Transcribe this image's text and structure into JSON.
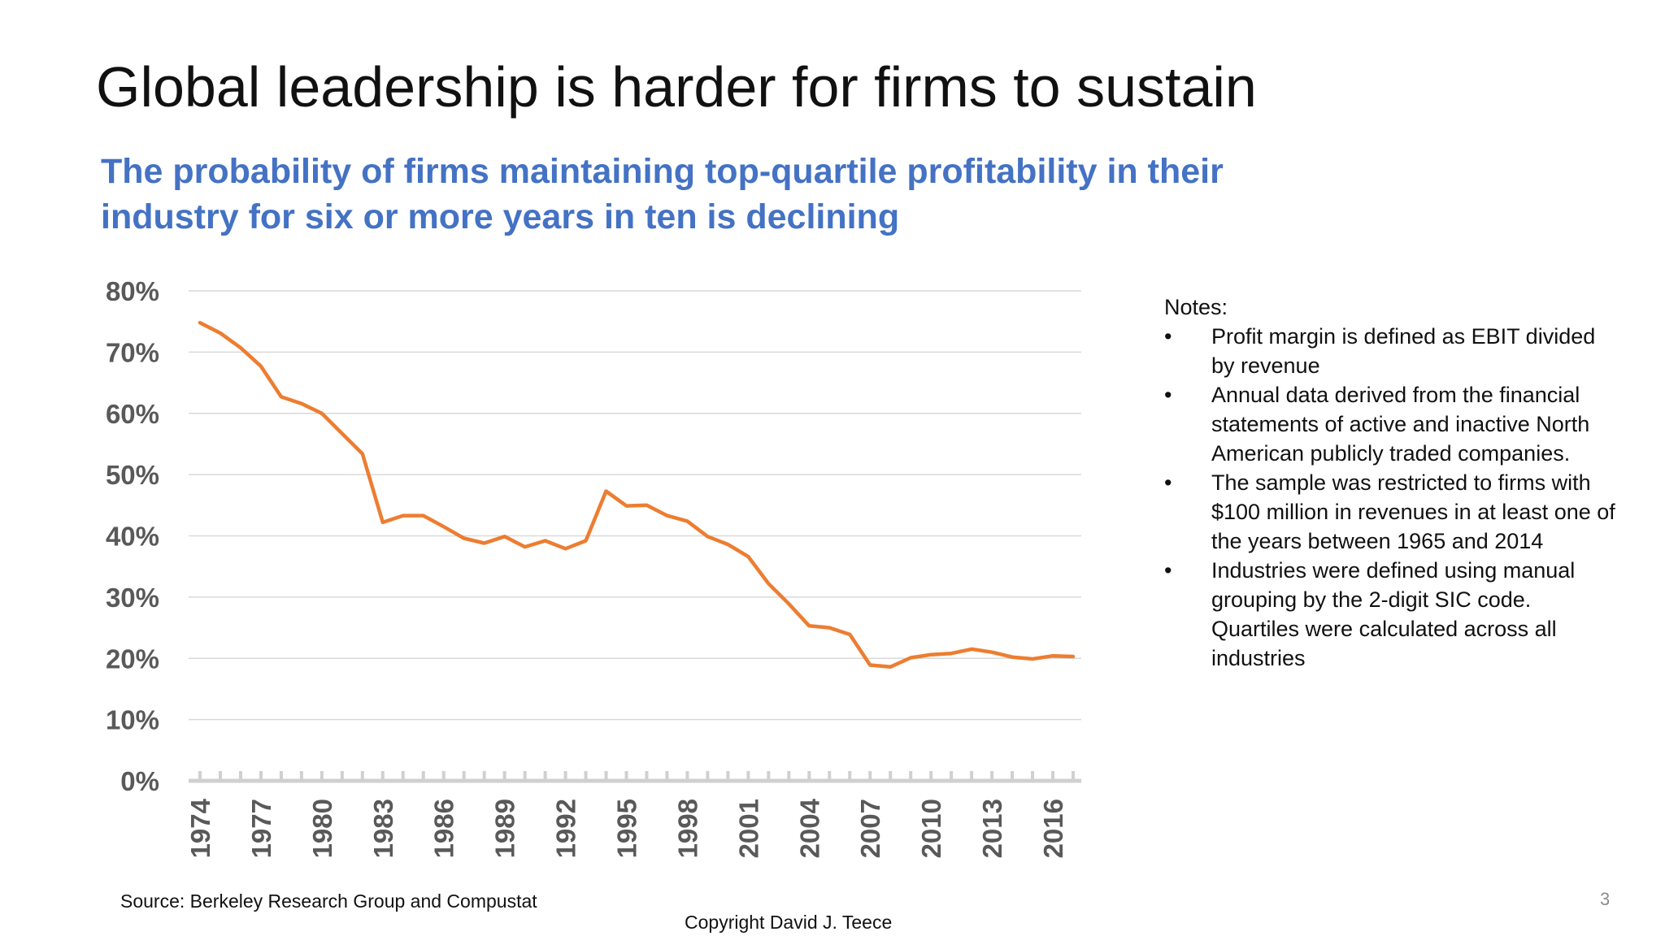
{
  "slide": {
    "title": "Global leadership is harder for firms to sustain",
    "subtitle_lines": [
      "The probability of firms maintaining top-quartile profitability in their",
      "industry for six or more years in ten is declining"
    ],
    "source": "Source: Berkeley Research Group and Compustat",
    "copyright": "Copyright David J. Teece",
    "page_number": "3"
  },
  "notes": {
    "heading": "Notes:",
    "items": [
      "Profit margin is defined as EBIT divided by revenue",
      "Annual data derived from the financial statements of active and inactive North American publicly traded companies.",
      "The sample was restricted to firms with $100 million in revenues in at least one of the years between 1965 and 2014",
      "Industries were defined using manual grouping by the 2-digit SIC code. Quartiles were calculated across all industries"
    ]
  },
  "chart_data": {
    "type": "line",
    "x": [
      1974,
      1975,
      1976,
      1977,
      1978,
      1979,
      1980,
      1981,
      1982,
      1983,
      1984,
      1985,
      1986,
      1987,
      1988,
      1989,
      1990,
      1991,
      1992,
      1993,
      1994,
      1995,
      1996,
      1997,
      1998,
      1999,
      2000,
      2001,
      2002,
      2003,
      2004,
      2005,
      2006,
      2007,
      2008,
      2009,
      2010,
      2011,
      2012,
      2013,
      2014,
      2015,
      2016,
      2017
    ],
    "series": [
      {
        "values": [
          74.8,
          73.1,
          70.7,
          67.7,
          62.7,
          61.6,
          60.0,
          56.7,
          53.4,
          42.2,
          43.3,
          43.3,
          41.5,
          39.6,
          38.8,
          39.9,
          38.2,
          39.2,
          37.9,
          39.2,
          47.3,
          44.9,
          45.0,
          43.3,
          42.4,
          39.9,
          38.6,
          36.6,
          32.2,
          28.9,
          25.3,
          25.0,
          23.9,
          18.9,
          18.6,
          20.1,
          20.6,
          20.8,
          21.5,
          21.0,
          20.2,
          19.9,
          20.4,
          20.3
        ],
        "color": "#ED7D31"
      }
    ],
    "x_tick_labels": [
      "1974",
      "1977",
      "1980",
      "1983",
      "1986",
      "1989",
      "1992",
      "1995",
      "1998",
      "2001",
      "2004",
      "2007",
      "2010",
      "2013",
      "2016"
    ],
    "y_tick_labels": [
      "0%",
      "10%",
      "20%",
      "30%",
      "40%",
      "50%",
      "60%",
      "70%",
      "80%"
    ],
    "ylim": [
      0,
      80
    ],
    "xlim": [
      1974,
      2017
    ],
    "grid": true,
    "legend": "none",
    "gridline_color": "#D9D9D9",
    "axis_color": "#D0D0D0",
    "tick_label_color": "#595959"
  }
}
